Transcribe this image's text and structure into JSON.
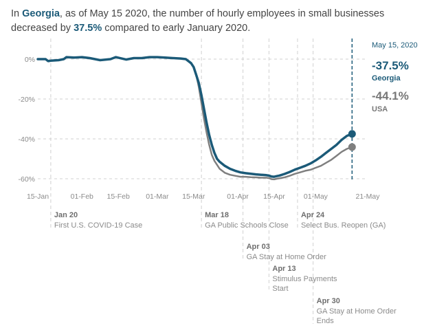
{
  "headline": {
    "prefix": "In ",
    "state": "Georgia",
    "mid": ", as of May 15 2020, the number of hourly employees in small businesses decreased by ",
    "pct": "37.5%",
    "suffix": " compared to early January 2020."
  },
  "colors": {
    "georgia": "#1b5a78",
    "usa": "#7f7f7f",
    "grid": "#d0d0d0"
  },
  "callout": {
    "date": "May 15, 2020",
    "georgia_value": "-37.5%",
    "georgia_label": "Georgia",
    "usa_value": "-44.1%",
    "usa_label": "USA"
  },
  "chart_data": {
    "type": "line",
    "title": "In Georgia, as of May 15 2020, the number of hourly employees in small businesses decreased by 37.5% compared to early January 2020.",
    "xlabel": "",
    "ylabel": "",
    "x_unit": "days since Jan 15 2020",
    "xlim": [
      0,
      127
    ],
    "ylim": [
      -65,
      8
    ],
    "x_ticks": [
      {
        "x": 0,
        "label": "15-Jan"
      },
      {
        "x": 17,
        "label": "01-Feb"
      },
      {
        "x": 31,
        "label": "15-Feb"
      },
      {
        "x": 46,
        "label": "01-Mar"
      },
      {
        "x": 60,
        "label": "15-Mar"
      },
      {
        "x": 77,
        "label": "01-Apr"
      },
      {
        "x": 91,
        "label": "15-Apr"
      },
      {
        "x": 107,
        "label": "01-May"
      },
      {
        "x": 127,
        "label": "21-May"
      }
    ],
    "y_ticks": [
      {
        "y": 0,
        "label": "0%"
      },
      {
        "y": -20,
        "label": "-20%"
      },
      {
        "y": -40,
        "label": "-40%"
      },
      {
        "y": -60,
        "label": "-60%"
      }
    ],
    "grid": true,
    "series": [
      {
        "name": "USA",
        "x": [
          0,
          3,
          4,
          5,
          8,
          10,
          11,
          14,
          17,
          20,
          24,
          28,
          30,
          34,
          37,
          40,
          43,
          46,
          49,
          52,
          55,
          57,
          59,
          60,
          61,
          62,
          63,
          64,
          65,
          66,
          67,
          68,
          69,
          70,
          72,
          74,
          76,
          78,
          80,
          82,
          84,
          86,
          88,
          89,
          90,
          91,
          92,
          93,
          95,
          97,
          99,
          101,
          103,
          105,
          107,
          109,
          111,
          113,
          115,
          117,
          119,
          121
        ],
        "y": [
          0,
          0,
          -1,
          -0.8,
          -0.5,
          0,
          1,
          0.8,
          1,
          0.5,
          -0.5,
          0,
          1,
          -0.2,
          0.5,
          0.5,
          1,
          1,
          0.8,
          0.5,
          0.3,
          0,
          -2,
          -4,
          -8,
          -14,
          -22,
          -30,
          -37,
          -43,
          -48,
          -51,
          -53,
          -55,
          -57,
          -58,
          -58.5,
          -59,
          -59,
          -59.2,
          -59.3,
          -59.5,
          -59.5,
          -59.7,
          -60.2,
          -60.3,
          -60,
          -59.8,
          -59.3,
          -58.5,
          -57.5,
          -56.8,
          -56,
          -55.5,
          -54.5,
          -53.5,
          -52,
          -50.5,
          -48.5,
          -46.5,
          -45,
          -44.1
        ]
      },
      {
        "name": "Georgia",
        "x": [
          0,
          3,
          4,
          5,
          8,
          10,
          11,
          14,
          17,
          20,
          24,
          28,
          30,
          34,
          37,
          40,
          43,
          46,
          49,
          52,
          55,
          57,
          59,
          60,
          61,
          62,
          63,
          64,
          65,
          66,
          67,
          68,
          69,
          70,
          72,
          74,
          76,
          78,
          80,
          82,
          84,
          86,
          88,
          89,
          90,
          91,
          92,
          93,
          95,
          97,
          99,
          101,
          103,
          105,
          107,
          109,
          111,
          113,
          115,
          117,
          119,
          121
        ],
        "y": [
          0,
          0,
          -1,
          -0.8,
          -0.5,
          0,
          1,
          0.8,
          1,
          0.5,
          -0.5,
          0,
          1,
          -0.2,
          0.5,
          0.5,
          1,
          1,
          0.8,
          0.5,
          0.3,
          0,
          -2,
          -4,
          -8,
          -12,
          -18,
          -25,
          -32,
          -38,
          -43,
          -47,
          -50,
          -51.5,
          -53.5,
          -55,
          -56,
          -56.8,
          -57.2,
          -57.5,
          -57.8,
          -58,
          -58.2,
          -58.4,
          -58.9,
          -59,
          -58.7,
          -58.4,
          -57.6,
          -56.6,
          -55.4,
          -54.5,
          -53.5,
          -52.3,
          -50.8,
          -49,
          -47,
          -45,
          -43,
          -40.5,
          -38.5,
          -37.5
        ]
      }
    ],
    "annotations": [
      {
        "x": 5,
        "date": "Jan 20",
        "text": [
          "First U.S. COVID-19 Case"
        ]
      },
      {
        "x": 63,
        "date": "Mar 18",
        "text": [
          "GA Public Schools Close"
        ]
      },
      {
        "x": 79,
        "date": "Apr 03",
        "text": [
          "GA Stay at Home Order"
        ]
      },
      {
        "x": 89,
        "date": "Apr 13",
        "text": [
          "Stimulus Payments",
          "Start"
        ]
      },
      {
        "x": 100,
        "date": "Apr 24",
        "text": [
          "Select Bus. Reopen (GA)"
        ]
      },
      {
        "x": 106,
        "date": "Apr 30",
        "text": [
          "GA Stay at Home Order",
          "Ends"
        ]
      }
    ],
    "end_marker": {
      "x": 121,
      "label": "May 15, 2020",
      "georgia": -37.5,
      "usa": -44.1
    }
  }
}
